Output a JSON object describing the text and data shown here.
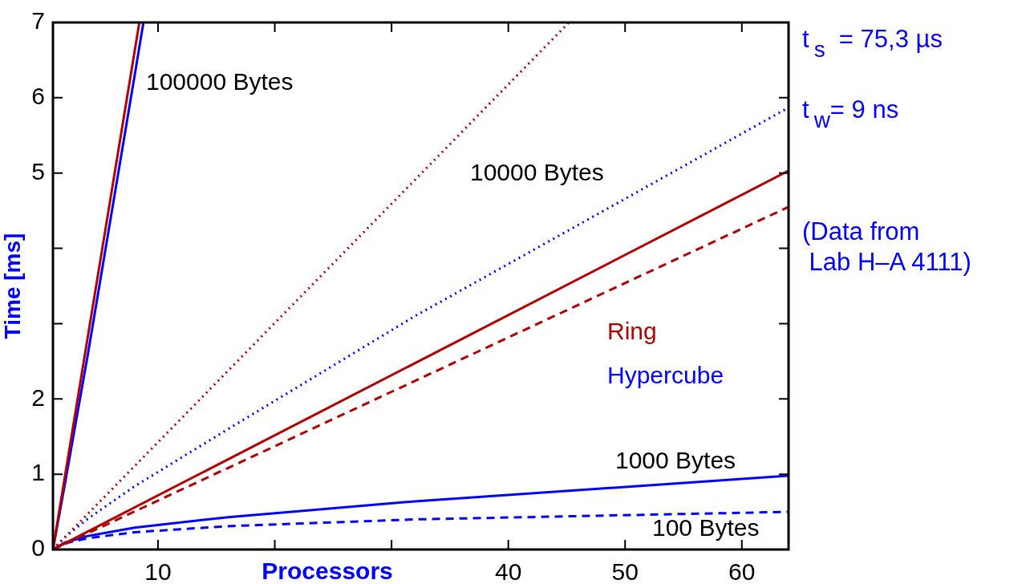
{
  "chart_data": {
    "type": "line",
    "xlabel": "Processors",
    "ylabel": "Time [ms]",
    "xlim": [
      1,
      64
    ],
    "xticks": [
      10,
      {
        "value": 20,
        "label": null
      },
      {
        "value": 30,
        "label": null
      },
      40,
      50,
      60
    ],
    "ylim": [
      0,
      7
    ],
    "yticks": [
      0,
      1,
      2,
      {
        "value": 3,
        "label": null
      },
      {
        "value": 4,
        "label": null
      },
      5,
      6,
      7
    ],
    "grid": false,
    "legend": false,
    "marker": "none",
    "series": [
      {
        "color": "#b40000",
        "line_style": "solid",
        "x": [
          1,
          8.4
        ],
        "values": [
          0,
          7
        ]
      },
      {
        "color": "#0000ff",
        "line_style": "solid",
        "x": [
          1,
          2,
          4,
          8,
          8.75
        ],
        "values": [
          0,
          0.85,
          2.6,
          6.3,
          7
        ]
      },
      {
        "color": "#b40000",
        "line_style": "dotted",
        "x": [
          1,
          45.2
        ],
        "values": [
          0,
          7
        ]
      },
      {
        "color": "#0000ff",
        "line_style": "dotted",
        "x": [
          1,
          2,
          4,
          8,
          16,
          32,
          64
        ],
        "values": [
          0,
          0.16,
          0.41,
          0.84,
          1.6,
          3.1,
          5.87
        ]
      },
      {
        "color": "#b40000",
        "line_style": "solid",
        "x": [
          1,
          64
        ],
        "values": [
          0,
          5.03
        ]
      },
      {
        "color": "#b40000",
        "line_style": "dashed",
        "x": [
          1,
          64
        ],
        "values": [
          0,
          4.55
        ]
      },
      {
        "color": "#0000ff",
        "line_style": "solid",
        "x": [
          1,
          2,
          4,
          8,
          16,
          32,
          64
        ],
        "values": [
          0,
          0.09,
          0.18,
          0.29,
          0.43,
          0.64,
          0.98
        ]
      },
      {
        "color": "#0000ff",
        "line_style": "dashed",
        "x": [
          1,
          2,
          4,
          8,
          16,
          32,
          64
        ],
        "values": [
          0,
          0.08,
          0.15,
          0.23,
          0.31,
          0.4,
          0.5
        ]
      }
    ],
    "annotations": [
      "100000 Bytes",
      "10000 Bytes",
      "1000 Bytes",
      "100 Bytes",
      "Ring",
      "Hypercube",
      "t$_{s}$  = 75,3 µs",
      "t$_{w}$= 9 ns",
      "(Data from\n Lab H–A 4111)"
    ]
  }
}
